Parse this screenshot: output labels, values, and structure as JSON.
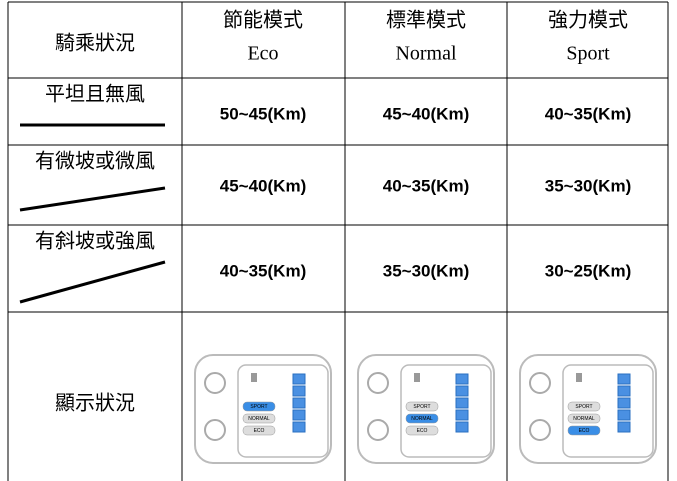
{
  "table": {
    "header": {
      "condition": "騎乘狀況",
      "modes": [
        {
          "zh": "節能模式",
          "en": "Eco"
        },
        {
          "zh": "標準模式",
          "en": "Normal"
        },
        {
          "zh": "強力模式",
          "en": "Sport"
        }
      ]
    },
    "rows": [
      {
        "condition": "平坦且無風",
        "ranges": [
          "50~45(Km)",
          "45~40(Km)",
          "40~35(Km)"
        ]
      },
      {
        "condition": "有微坡或微風",
        "ranges": [
          "45~40(Km)",
          "40~35(Km)",
          "35~30(Km)"
        ]
      },
      {
        "condition": "有斜坡或強風",
        "ranges": [
          "40~35(Km)",
          "35~30(Km)",
          "30~25(Km)"
        ]
      }
    ],
    "display": {
      "label": "顯示狀況",
      "buttons": [
        "SPORT",
        "NORMAL",
        "ECO"
      ]
    }
  }
}
